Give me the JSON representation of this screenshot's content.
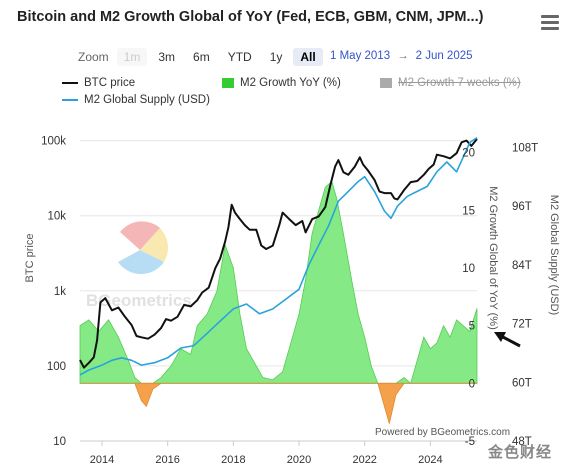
{
  "header": {
    "title": "Bitcoin and M2 Growth Global of YoY (Fed, ECB, GBM, CNM, JPM...)",
    "menu_icon": "hamburger-menu-icon"
  },
  "toolbar": {
    "zoom_label": "Zoom",
    "zoom_buttons": [
      {
        "label": "1m",
        "state": "disabled"
      },
      {
        "label": "3m",
        "state": "normal"
      },
      {
        "label": "6m",
        "state": "normal"
      },
      {
        "label": "YTD",
        "state": "normal"
      },
      {
        "label": "1y",
        "state": "normal"
      },
      {
        "label": "All",
        "state": "active"
      }
    ],
    "date_from": "1 May 2013",
    "date_arrow": "→",
    "date_to": "2 Jun 2025"
  },
  "legend": [
    {
      "label": "BTC price",
      "color": "#111111",
      "kind": "line"
    },
    {
      "label": "M2 Growth YoY (%)",
      "color": "#33cc33",
      "kind": "box"
    },
    {
      "label": "M2 Growth 7 weeks (%)",
      "color": "#999999",
      "kind": "box",
      "hidden": true
    },
    {
      "label": "M2 Global Supply (USD)",
      "color": "#2aa3dc",
      "kind": "line"
    }
  ],
  "credit": "Powered by BGeometrics.com",
  "watermark": "BGeometrics",
  "brand": "金色财经",
  "chart_data": {
    "type": "line",
    "x_axis": {
      "range": [
        2013.33,
        2025.42
      ],
      "ticks": [
        "2014",
        "2016",
        "2018",
        "2020",
        "2022",
        "2024"
      ],
      "tick_values": [
        2014,
        2016,
        2018,
        2020,
        2022,
        2024
      ]
    },
    "y_axes": {
      "btc": {
        "label": "BTC price",
        "scale": "log",
        "range": [
          10,
          200000
        ],
        "ticks": [
          "10",
          "100",
          "1k",
          "10k",
          "100k"
        ],
        "tick_values": [
          10,
          100,
          1000,
          10000,
          100000
        ]
      },
      "m2_yoy": {
        "label": "M2 Growth Global of YoY (%)",
        "scale": "linear",
        "range": [
          -5,
          23
        ],
        "ticks": [
          "-5",
          "0",
          "5",
          "10",
          "15",
          "20"
        ],
        "tick_values": [
          -5,
          0,
          5,
          10,
          15,
          20
        ]
      },
      "m2_supply": {
        "label": "M2 Global Supply (USD)",
        "scale": "linear",
        "range": [
          48,
          114
        ],
        "ticks": [
          "48T",
          "60T",
          "72T",
          "84T",
          "96T",
          "108T"
        ],
        "tick_values": [
          48,
          60,
          72,
          84,
          96,
          108
        ]
      }
    },
    "series": [
      {
        "name": "BTC price",
        "axis": "btc",
        "color": "#111111",
        "x": [
          2013.33,
          2013.45,
          2013.6,
          2013.75,
          2013.85,
          2013.95,
          2014.1,
          2014.3,
          2014.5,
          2014.7,
          2014.9,
          2015.05,
          2015.2,
          2015.4,
          2015.6,
          2015.8,
          2015.95,
          2016.1,
          2016.3,
          2016.5,
          2016.7,
          2016.9,
          2017.05,
          2017.25,
          2017.45,
          2017.6,
          2017.75,
          2017.85,
          2017.95,
          2018.05,
          2018.2,
          2018.35,
          2018.5,
          2018.7,
          2018.85,
          2019.0,
          2019.2,
          2019.4,
          2019.5,
          2019.7,
          2019.9,
          2020.1,
          2020.2,
          2020.4,
          2020.6,
          2020.8,
          2020.95,
          2021.1,
          2021.2,
          2021.35,
          2021.5,
          2021.7,
          2021.85,
          2021.95,
          2022.1,
          2022.3,
          2022.45,
          2022.6,
          2022.8,
          2022.9,
          2023.0,
          2023.2,
          2023.4,
          2023.6,
          2023.8,
          2023.95,
          2024.1,
          2024.2,
          2024.4,
          2024.6,
          2024.8,
          2024.95,
          2025.1,
          2025.25,
          2025.42
        ],
        "y": [
          120,
          95,
          110,
          130,
          220,
          700,
          800,
          550,
          600,
          450,
          350,
          250,
          240,
          230,
          260,
          320,
          420,
          400,
          450,
          650,
          620,
          750,
          950,
          1100,
          2000,
          2700,
          4500,
          7000,
          14000,
          11000,
          9000,
          7500,
          6500,
          6500,
          4000,
          3600,
          4000,
          7500,
          11000,
          9000,
          7500,
          8500,
          6000,
          9000,
          9800,
          13000,
          25000,
          45000,
          55000,
          38000,
          35000,
          45000,
          60000,
          48000,
          40000,
          30000,
          21000,
          20000,
          20000,
          17000,
          16500,
          22000,
          28000,
          29000,
          35000,
          42000,
          48000,
          65000,
          62000,
          58000,
          68000,
          95000,
          100000,
          85000,
          105000
        ]
      },
      {
        "name": "M2 Global Supply (USD)",
        "axis": "m2_supply",
        "color": "#2aa3dc",
        "x": [
          2013.33,
          2013.6,
          2014.0,
          2014.3,
          2014.6,
          2014.9,
          2015.2,
          2015.6,
          2016.0,
          2016.4,
          2016.8,
          2017.2,
          2017.6,
          2018.0,
          2018.4,
          2018.8,
          2019.2,
          2019.6,
          2020.0,
          2020.3,
          2020.6,
          2020.9,
          2021.2,
          2021.5,
          2021.8,
          2022.0,
          2022.3,
          2022.6,
          2022.8,
          2023.0,
          2023.3,
          2023.6,
          2023.9,
          2024.2,
          2024.5,
          2024.8,
          2025.0,
          2025.2,
          2025.42
        ],
        "y": [
          61.5,
          62.5,
          63.5,
          64.5,
          65,
          64.5,
          63.5,
          64,
          65,
          67,
          67.5,
          70,
          72.5,
          75,
          76,
          74,
          75,
          77,
          79,
          84,
          88,
          92,
          97,
          99,
          101,
          102,
          99,
          95,
          93.5,
          96,
          98,
          99,
          100,
          103,
          105,
          103,
          106,
          109,
          110
        ]
      },
      {
        "name": "M2 Growth YoY (%)",
        "axis": "m2_yoy",
        "color": "#66dd55",
        "x": [
          2013.33,
          2013.6,
          2013.9,
          2014.2,
          2014.5,
          2014.8,
          2015.0,
          2015.2,
          2015.35,
          2015.55,
          2015.8,
          2016.1,
          2016.4,
          2016.7,
          2016.9,
          2017.2,
          2017.5,
          2017.75,
          2018.0,
          2018.2,
          2018.4,
          2018.6,
          2018.9,
          2019.2,
          2019.5,
          2019.8,
          2020.0,
          2020.2,
          2020.4,
          2020.6,
          2020.8,
          2021.0,
          2021.15,
          2021.35,
          2021.6,
          2021.8,
          2022.0,
          2022.2,
          2022.4,
          2022.55,
          2022.75,
          2022.95,
          2023.2,
          2023.4,
          2023.6,
          2023.8,
          2024.0,
          2024.2,
          2024.4,
          2024.6,
          2024.8,
          2025.0,
          2025.2,
          2025.42
        ],
        "y": [
          5,
          5.5,
          4.5,
          5.5,
          4,
          2,
          0.5,
          -1.5,
          -2,
          -0.5,
          0.5,
          1.5,
          3,
          2.5,
          5,
          6,
          8,
          12,
          10,
          6,
          3,
          2,
          0.5,
          0.3,
          1,
          4,
          6,
          9,
          13,
          15,
          17,
          17.5,
          16,
          13,
          9,
          6,
          4,
          1.5,
          0,
          -1.5,
          -3.5,
          -1,
          0.5,
          0,
          2,
          4,
          3,
          3.5,
          5,
          4,
          5.5,
          5,
          4.5,
          6.5
        ]
      }
    ],
    "title": "Bitcoin and M2 Growth Global of YoY (Fed, ECB, GBM, CNM, JPM...)",
    "grid": true,
    "legend_position": "top-left"
  }
}
